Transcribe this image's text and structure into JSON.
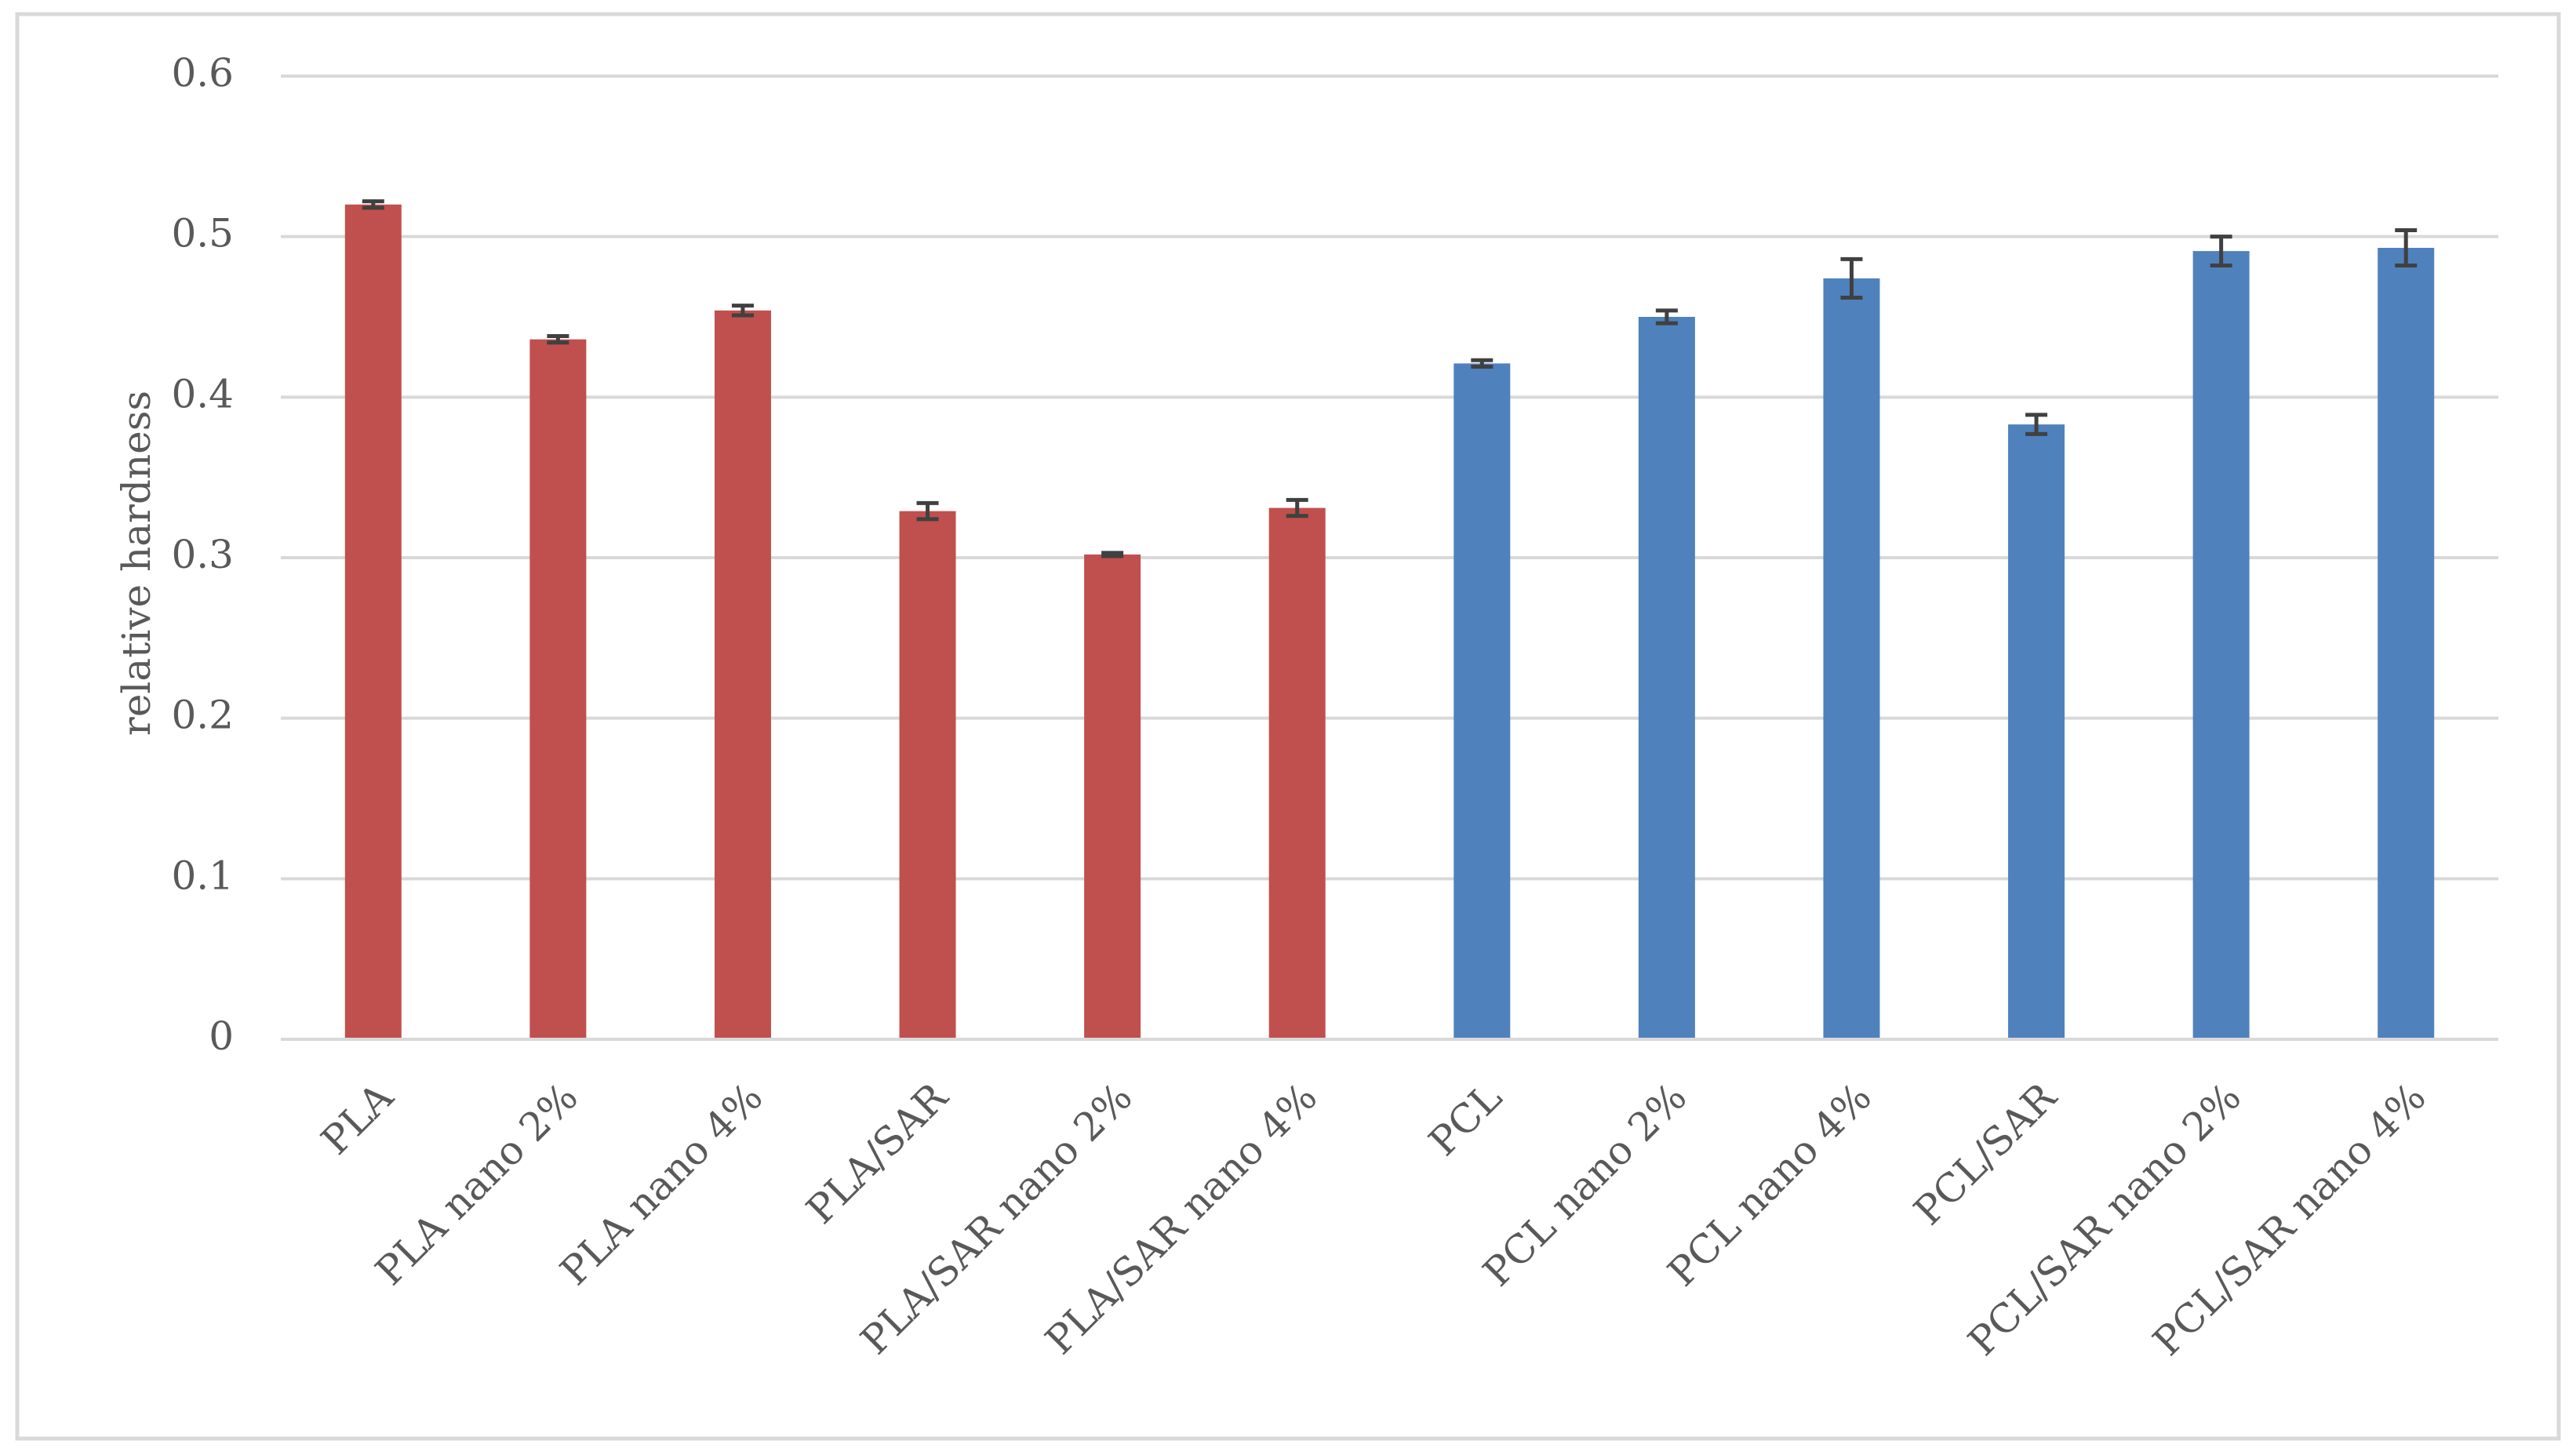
{
  "chart_data": {
    "type": "bar",
    "title": "",
    "xlabel": "",
    "ylabel": "relative hardness",
    "ylim": [
      0,
      0.6
    ],
    "yticks": [
      "0",
      "0.1",
      "0.2",
      "0.3",
      "0.4",
      "0.5",
      "0.6"
    ],
    "grid": true,
    "legend": "none",
    "categories": [
      "PLA",
      "PLA nano 2%",
      "PLA nano 4%",
      "PLA/SAR",
      "PLA/SAR nano 2%",
      "PLA/SAR nano 4%",
      "PCL",
      "PCL nano 2%",
      "PCL nano 4%",
      "PCL/SAR",
      "PCL/SAR nano 2%",
      "PCL/SAR nano 4%"
    ],
    "values": [
      0.52,
      0.436,
      0.454,
      0.329,
      0.302,
      0.331,
      0.421,
      0.45,
      0.474,
      0.383,
      0.491,
      0.493
    ],
    "errors": [
      0.002,
      0.002,
      0.003,
      0.005,
      0.001,
      0.005,
      0.002,
      0.004,
      0.012,
      0.006,
      0.009,
      0.011
    ],
    "bar_colors": [
      "#c0504d",
      "#c0504d",
      "#c0504d",
      "#c0504d",
      "#c0504d",
      "#c0504d",
      "#4f81bd",
      "#4f81bd",
      "#4f81bd",
      "#4f81bd",
      "#4f81bd",
      "#4f81bd"
    ],
    "colors": {
      "gridline": "#d9d9d9",
      "error_bar": "#404040",
      "text": "#595959",
      "frame": "#d9d9d9"
    }
  }
}
